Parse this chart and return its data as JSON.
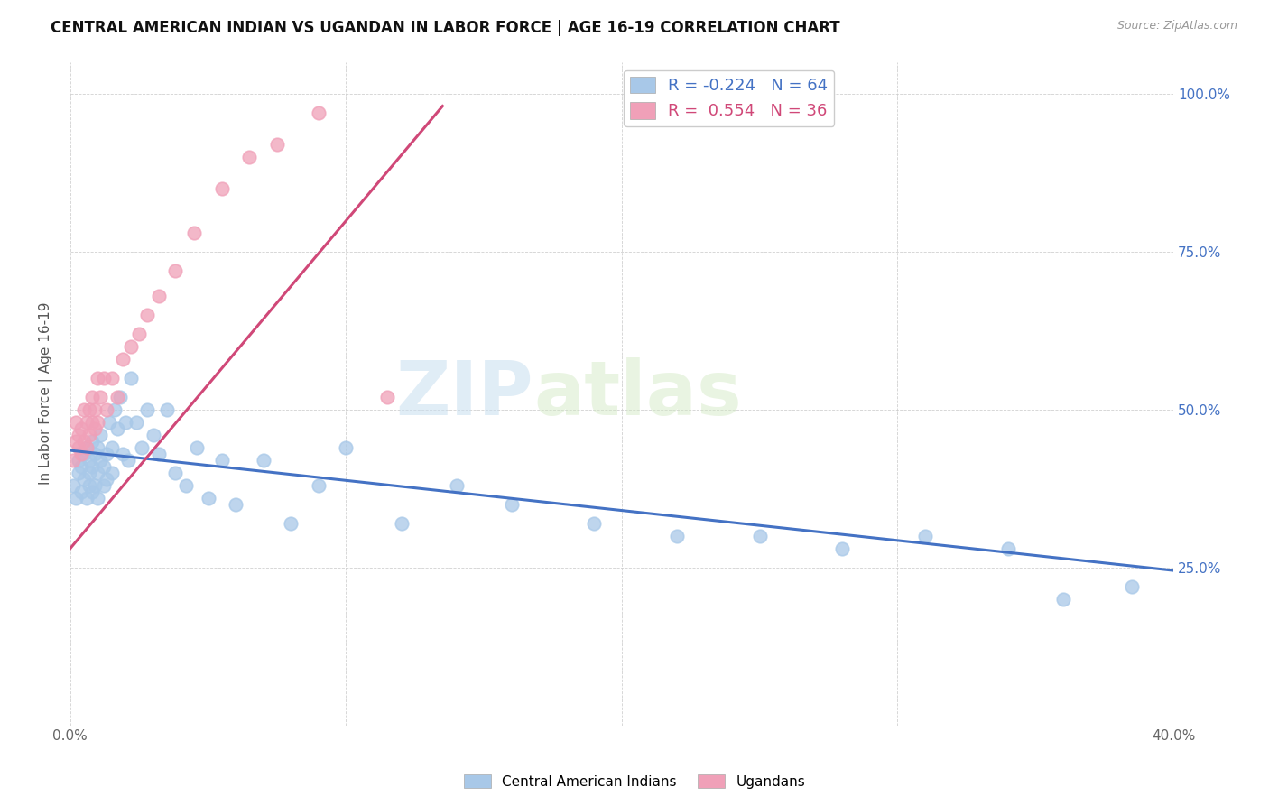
{
  "title": "CENTRAL AMERICAN INDIAN VS UGANDAN IN LABOR FORCE | AGE 16-19 CORRELATION CHART",
  "source": "Source: ZipAtlas.com",
  "ylabel": "In Labor Force | Age 16-19",
  "xlim": [
    0.0,
    0.4
  ],
  "ylim": [
    0.0,
    1.05
  ],
  "xtick_vals": [
    0.0,
    0.1,
    0.2,
    0.3,
    0.4
  ],
  "xtick_labels": [
    "0.0%",
    "",
    "",
    "",
    "40.0%"
  ],
  "ytick_vals": [
    0.0,
    0.25,
    0.5,
    0.75,
    1.0
  ],
  "ytick_labels_right": [
    "",
    "25.0%",
    "50.0%",
    "75.0%",
    "100.0%"
  ],
  "blue_R": "-0.224",
  "blue_N": 64,
  "pink_R": "0.554",
  "pink_N": 36,
  "blue_color": "#a8c8e8",
  "pink_color": "#f0a0b8",
  "blue_line_color": "#4472c4",
  "pink_line_color": "#d04878",
  "watermark_zip": "ZIP",
  "watermark_atlas": "atlas",
  "blue_line_x": [
    0.0,
    0.4
  ],
  "blue_line_y": [
    0.435,
    0.245
  ],
  "pink_line_x": [
    0.0,
    0.135
  ],
  "pink_line_y": [
    0.28,
    0.98
  ],
  "blue_x": [
    0.001,
    0.002,
    0.003,
    0.003,
    0.004,
    0.004,
    0.005,
    0.005,
    0.006,
    0.006,
    0.007,
    0.007,
    0.007,
    0.008,
    0.008,
    0.008,
    0.009,
    0.009,
    0.01,
    0.01,
    0.01,
    0.011,
    0.011,
    0.012,
    0.012,
    0.013,
    0.013,
    0.014,
    0.015,
    0.015,
    0.016,
    0.017,
    0.018,
    0.019,
    0.02,
    0.021,
    0.022,
    0.024,
    0.026,
    0.028,
    0.03,
    0.032,
    0.035,
    0.038,
    0.042,
    0.046,
    0.05,
    0.055,
    0.06,
    0.07,
    0.08,
    0.09,
    0.1,
    0.12,
    0.14,
    0.16,
    0.19,
    0.22,
    0.25,
    0.28,
    0.31,
    0.34,
    0.36,
    0.385
  ],
  "blue_y": [
    0.38,
    0.36,
    0.4,
    0.42,
    0.37,
    0.41,
    0.39,
    0.43,
    0.36,
    0.44,
    0.38,
    0.4,
    0.42,
    0.37,
    0.41,
    0.45,
    0.38,
    0.43,
    0.36,
    0.4,
    0.44,
    0.42,
    0.46,
    0.38,
    0.41,
    0.39,
    0.43,
    0.48,
    0.4,
    0.44,
    0.5,
    0.47,
    0.52,
    0.43,
    0.48,
    0.42,
    0.55,
    0.48,
    0.44,
    0.5,
    0.46,
    0.43,
    0.5,
    0.4,
    0.38,
    0.44,
    0.36,
    0.42,
    0.35,
    0.42,
    0.32,
    0.38,
    0.44,
    0.32,
    0.38,
    0.35,
    0.32,
    0.3,
    0.3,
    0.28,
    0.3,
    0.28,
    0.2,
    0.22
  ],
  "pink_x": [
    0.001,
    0.002,
    0.002,
    0.003,
    0.003,
    0.004,
    0.004,
    0.005,
    0.005,
    0.006,
    0.006,
    0.007,
    0.007,
    0.008,
    0.008,
    0.009,
    0.009,
    0.01,
    0.01,
    0.011,
    0.012,
    0.013,
    0.015,
    0.017,
    0.019,
    0.022,
    0.025,
    0.028,
    0.032,
    0.038,
    0.045,
    0.055,
    0.065,
    0.075,
    0.09,
    0.115
  ],
  "pink_y": [
    0.42,
    0.45,
    0.48,
    0.44,
    0.46,
    0.47,
    0.43,
    0.5,
    0.45,
    0.48,
    0.44,
    0.5,
    0.46,
    0.48,
    0.52,
    0.47,
    0.5,
    0.55,
    0.48,
    0.52,
    0.55,
    0.5,
    0.55,
    0.52,
    0.58,
    0.6,
    0.62,
    0.65,
    0.68,
    0.72,
    0.78,
    0.85,
    0.9,
    0.92,
    0.97,
    0.52
  ]
}
